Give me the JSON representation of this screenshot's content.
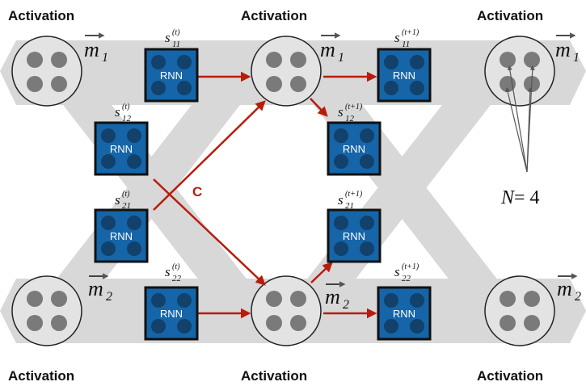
{
  "activation_label": "Activation",
  "rnn_label": "RNN",
  "connection_label": "C",
  "n_label": "N = 4",
  "n_var": "N",
  "n_eq": "= 4",
  "m1": {
    "base": "m",
    "sub": "1"
  },
  "m2": {
    "base": "m",
    "sub": "2"
  },
  "states_t": [
    {
      "base": "s",
      "sup": "(t)",
      "sub": "11"
    },
    {
      "base": "s",
      "sup": "(t)",
      "sub": "12"
    },
    {
      "base": "s",
      "sup": "(t)",
      "sub": "21"
    },
    {
      "base": "s",
      "sup": "(t)",
      "sub": "22"
    }
  ],
  "states_t1": [
    {
      "base": "s",
      "sup": "(t+1)",
      "sub": "11"
    },
    {
      "base": "s",
      "sup": "(t+1)",
      "sub": "12"
    },
    {
      "base": "s",
      "sup": "(t+1)",
      "sub": "21"
    },
    {
      "base": "s",
      "sup": "(t+1)",
      "sub": "22"
    }
  ],
  "colors": {
    "rnn_fill": "#1565a8",
    "rnn_dot": "#12416b",
    "arrow": "#b81c0c",
    "band": "#d8d8d8",
    "circle_fill": "#e3e3e3",
    "circle_dot": "#7a7a7a"
  }
}
